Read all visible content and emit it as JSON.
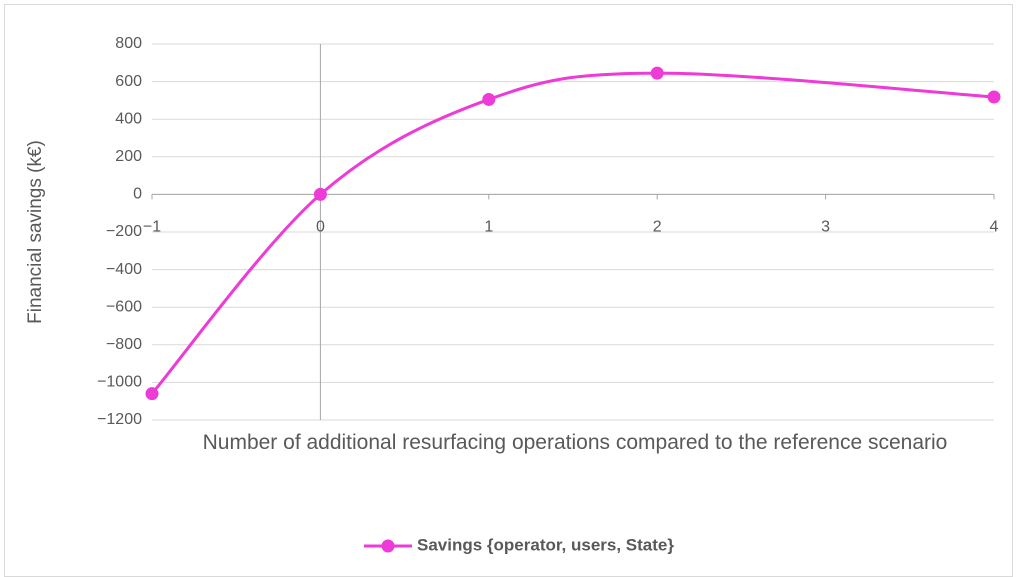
{
  "chart_data": {
    "type": "line",
    "x_label": "Number of additional resurfacing operations compared to the reference scenario",
    "y_label": "Financial savings (k€)",
    "x": [
      -1,
      0,
      1,
      2,
      4
    ],
    "series": [
      {
        "name": "Savings {operator, users, State}",
        "color": "#ee3ad6",
        "values": [
          -1060,
          0,
          505,
          645,
          518
        ]
      }
    ],
    "xlim": [
      -1,
      4
    ],
    "xticks": [
      {
        "value": -1,
        "label": "−1"
      },
      0,
      1,
      2,
      3,
      4
    ],
    "ylim": [
      -1200,
      800
    ],
    "yticks": [
      {
        "value": -1200,
        "label": "−1200"
      },
      {
        "value": -1000,
        "label": "−1000"
      },
      {
        "value": -800,
        "label": "−800"
      },
      {
        "value": -600,
        "label": "−600"
      },
      {
        "value": -400,
        "label": "−400"
      },
      {
        "value": -200,
        "label": "−200"
      },
      0,
      200,
      400,
      600,
      800
    ],
    "grid": true,
    "smooth": true,
    "legend": "bottom"
  }
}
